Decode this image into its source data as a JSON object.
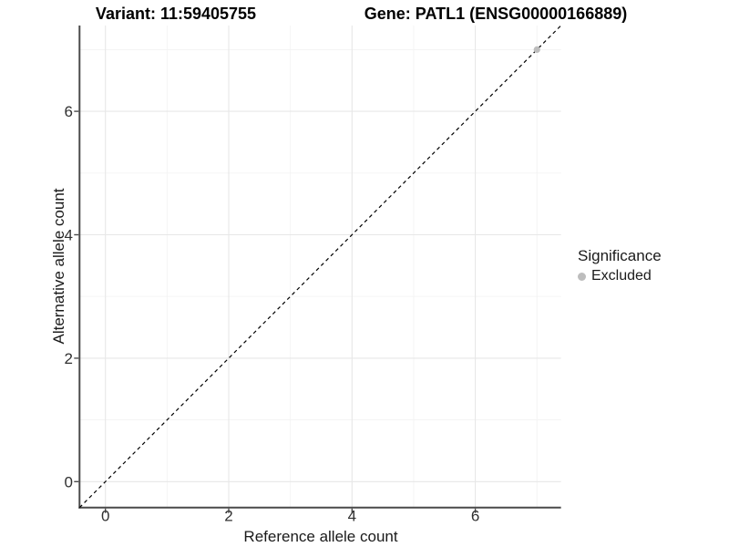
{
  "figure": {
    "title_left": "Variant: 11:59405755",
    "title_right": "Gene: PATL1 (ENSG00000166889)"
  },
  "chart_data": {
    "type": "scatter",
    "title": "Variant: 11:59405755   |   Gene: PATL1 (ENSG00000166889)",
    "xlabel": "Reference allele count",
    "ylabel": "Alternative allele count",
    "xlim": [
      -0.42,
      7.39
    ],
    "ylim": [
      -0.42,
      7.39
    ],
    "x_major_breaks": [
      0,
      2,
      4,
      6
    ],
    "x_minor_breaks": [
      1,
      3,
      5,
      7
    ],
    "y_major_breaks": [
      0,
      2,
      4,
      6
    ],
    "y_minor_breaks": [
      1,
      3,
      5,
      7
    ],
    "x_tick_labels": [
      "0",
      "2",
      "4",
      "6"
    ],
    "y_tick_labels": [
      "0",
      "2",
      "4",
      "6"
    ],
    "grid": true,
    "reference_line": {
      "type": "identity",
      "style": "dashed",
      "color": "#000000"
    },
    "series": [
      {
        "name": "Excluded",
        "color": "#bdbdbd",
        "points": [
          {
            "x": 7,
            "y": 7
          }
        ]
      }
    ],
    "legend": {
      "title": "Significance",
      "position": "right",
      "items": [
        {
          "label": "Excluded",
          "color": "#bdbdbd"
        }
      ]
    },
    "colors": {
      "panel_background": "#ffffff",
      "grid_major": "#e7e7e7",
      "grid_minor": "#f3f3f3",
      "axis_line": "#4a4a4a",
      "tick_label": "#303030",
      "point": "#bdbdbd"
    }
  }
}
